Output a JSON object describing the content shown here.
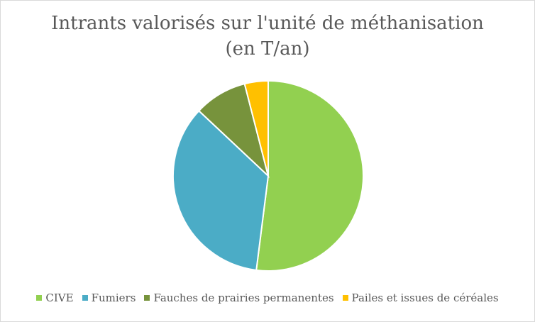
{
  "chart_data": {
    "type": "pie",
    "title_lines": [
      "Intrants valorisés sur l'unité de méthanisation",
      "(en T/an)"
    ],
    "categories": [
      "CIVE",
      "Fumiers",
      "Fauches de prairies permanentes",
      "Pailes et issues de céréales"
    ],
    "values": [
      52,
      35,
      9,
      4
    ],
    "colors": [
      "#92d050",
      "#4bacc6",
      "#77933c",
      "#ffc000"
    ],
    "legend_position": "bottom",
    "start_angle_deg": 0,
    "direction": "clockwise"
  }
}
